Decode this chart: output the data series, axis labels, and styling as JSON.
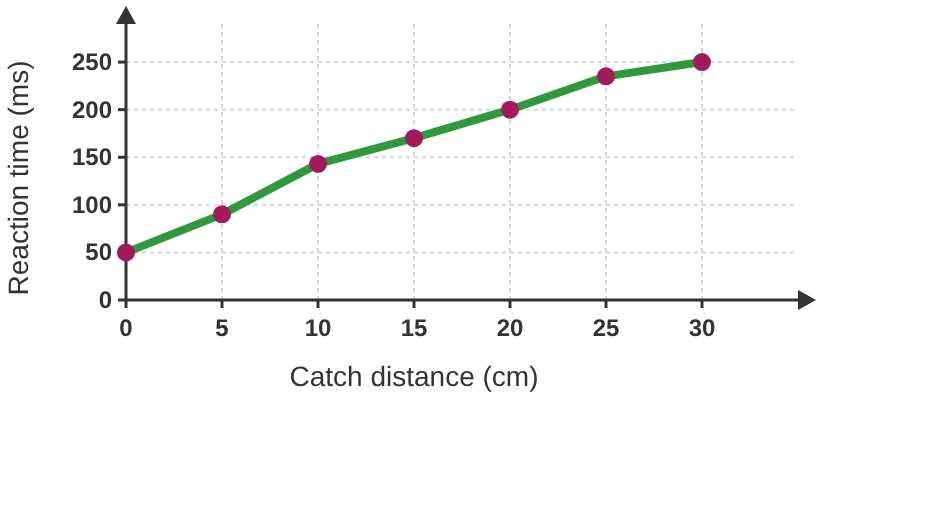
{
  "chart_data": {
    "type": "line",
    "xlabel": "Catch distance (cm)",
    "ylabel": "Reaction time (ms)",
    "x": [
      0,
      5,
      10,
      15,
      20,
      25,
      30
    ],
    "series": [
      {
        "color": "#2e9b3a",
        "values": [
          50,
          90,
          143,
          170,
          200,
          235,
          250
        ]
      }
    ],
    "xlim": [
      0,
      35
    ],
    "xticks": [
      0,
      5,
      10,
      15,
      20,
      25,
      30
    ],
    "ylim": [
      0,
      290
    ],
    "yticks": [
      0,
      50,
      100,
      150,
      200,
      250
    ],
    "grid": true,
    "marker": "circle",
    "line_style": "solid"
  }
}
